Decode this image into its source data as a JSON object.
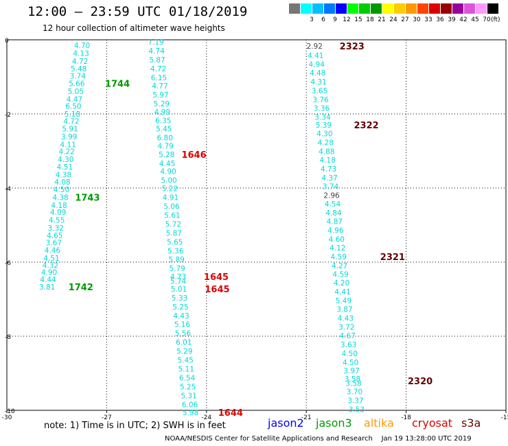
{
  "title": "12:00 – 23:59 UTC 01/18/2019",
  "subtitle": "12 hour collection of altimeter wave heights",
  "color_scale": {
    "unit_label": "(ft)",
    "swatches": [
      {
        "color": "#777777",
        "label": ""
      },
      {
        "color": "#00ffff",
        "label": "3"
      },
      {
        "color": "#00c0ff",
        "label": "6"
      },
      {
        "color": "#0078ff",
        "label": "9"
      },
      {
        "color": "#0000ff",
        "label": "12"
      },
      {
        "color": "#00ff00",
        "label": "15"
      },
      {
        "color": "#00cc00",
        "label": "18"
      },
      {
        "color": "#009900",
        "label": "21"
      },
      {
        "color": "#ffff00",
        "label": "24"
      },
      {
        "color": "#ffcc00",
        "label": "27"
      },
      {
        "color": "#ff9900",
        "label": "30"
      },
      {
        "color": "#ff4400",
        "label": "33"
      },
      {
        "color": "#dd0000",
        "label": "36"
      },
      {
        "color": "#990000",
        "label": "39"
      },
      {
        "color": "#990099",
        "label": "42"
      },
      {
        "color": "#dd55dd",
        "label": "45"
      },
      {
        "color": "#ff99ff",
        "label": "70"
      },
      {
        "color": "#000000",
        "label": ""
      }
    ]
  },
  "note": "note: 1) Time is in UTC; 2) SWH is in feet",
  "legend": [
    {
      "label": "jason2",
      "color": "#0000ff"
    },
    {
      "label": "jason3",
      "color": "#009900"
    },
    {
      "label": "altika",
      "color": "#ff9900"
    },
    {
      "label": "cryosat",
      "color": "#dd0000"
    },
    {
      "label": "s3a",
      "color": "#660000"
    }
  ],
  "footer": "NOAA/NESDIS Center for Satellite Applications and Research    Jan 19 13:28:00 UTC 2019",
  "chart_data": {
    "type": "scatter",
    "xlim": [
      -30,
      -15
    ],
    "ylim": [
      -10,
      0
    ],
    "x_ticks": [
      "-30",
      "-27",
      "-24",
      "-21",
      "-18",
      "-15"
    ],
    "y_ticks": [
      "0",
      "-2",
      "-4",
      "-6",
      "-8",
      "-10"
    ],
    "grid": true,
    "series": [
      {
        "name": "jason3",
        "color": "#009900",
        "points": [
          {
            "x": -27.74,
            "y": -0.15,
            "v": "4.70"
          },
          {
            "x": -27.77,
            "y": -0.36,
            "v": "4.13"
          },
          {
            "x": -27.8,
            "y": -0.57,
            "v": "4.72"
          },
          {
            "x": -27.84,
            "y": -0.78,
            "v": "5.48"
          },
          {
            "x": -27.87,
            "y": -0.97,
            "v": "3.74"
          },
          {
            "x": -27.9,
            "y": -1.18,
            "v": "5.66"
          },
          {
            "x": -27.93,
            "y": -1.39,
            "v": "5.05"
          },
          {
            "x": -27.97,
            "y": -1.6,
            "v": "4.47"
          },
          {
            "x": -28.0,
            "y": -1.79,
            "v": "6.50"
          },
          {
            "x": -28.03,
            "y": -2.0,
            "v": "5.18"
          },
          {
            "x": -28.06,
            "y": -2.19,
            "v": "4.72"
          },
          {
            "x": -28.1,
            "y": -2.4,
            "v": "5.91"
          },
          {
            "x": -28.13,
            "y": -2.61,
            "v": "3.99"
          },
          {
            "x": -28.16,
            "y": -2.82,
            "v": "4.11"
          },
          {
            "x": -28.2,
            "y": -3.01,
            "v": "4.22"
          },
          {
            "x": -28.23,
            "y": -3.22,
            "v": "4.30"
          },
          {
            "x": -28.26,
            "y": -3.43,
            "v": "4.51"
          },
          {
            "x": -28.3,
            "y": -3.64,
            "v": "4.38"
          },
          {
            "x": -28.33,
            "y": -3.83,
            "v": "4.08"
          },
          {
            "x": -28.36,
            "y": -4.04,
            "v": "4.50"
          },
          {
            "x": -28.39,
            "y": -4.25,
            "v": "4.38"
          },
          {
            "x": -28.43,
            "y": -4.46,
            "v": "4.18"
          },
          {
            "x": -28.46,
            "y": -4.65,
            "v": "4.09"
          },
          {
            "x": -28.5,
            "y": -4.86,
            "v": "4.55"
          },
          {
            "x": -28.53,
            "y": -5.07,
            "v": "3.32"
          },
          {
            "x": -28.56,
            "y": -5.28,
            "v": "4.65"
          },
          {
            "x": -28.59,
            "y": -5.47,
            "v": "3.67"
          },
          {
            "x": -28.63,
            "y": -5.68,
            "v": "4.46"
          },
          {
            "x": -28.66,
            "y": -5.89,
            "v": "4.51"
          },
          {
            "x": -28.69,
            "y": -6.08,
            "v": "4.32"
          },
          {
            "x": -28.73,
            "y": -6.27,
            "v": "4.90"
          },
          {
            "x": -28.76,
            "y": -6.46,
            "v": "4.44"
          },
          {
            "x": -28.79,
            "y": -6.67,
            "v": "3.81"
          }
        ],
        "time_labels": [
          {
            "x": -27.05,
            "y": -1.18,
            "text": "1744"
          },
          {
            "x": -27.95,
            "y": -4.25,
            "text": "1743"
          },
          {
            "x": -28.15,
            "y": -6.67,
            "text": "1742"
          }
        ]
      },
      {
        "name": "cryosat",
        "color": "#dd0000",
        "points": [
          {
            "x": -25.52,
            "y": -0.06,
            "v": "7.19"
          },
          {
            "x": -25.5,
            "y": -0.3,
            "v": "4.74"
          },
          {
            "x": -25.48,
            "y": -0.54,
            "v": "5.87"
          },
          {
            "x": -25.45,
            "y": -0.78,
            "v": "4.72"
          },
          {
            "x": -25.43,
            "y": -1.02,
            "v": "6.15"
          },
          {
            "x": -25.4,
            "y": -1.24,
            "v": "4.77"
          },
          {
            "x": -25.38,
            "y": -1.48,
            "v": "5.97"
          },
          {
            "x": -25.35,
            "y": -1.72,
            "v": "5.29"
          },
          {
            "x": -25.33,
            "y": -1.94,
            "v": "4.99"
          },
          {
            "x": -25.3,
            "y": -2.18,
            "v": "6.35"
          },
          {
            "x": -25.28,
            "y": -2.4,
            "v": "5.45"
          },
          {
            "x": -25.25,
            "y": -2.64,
            "v": "6.80"
          },
          {
            "x": -25.23,
            "y": -2.86,
            "v": "4.79"
          },
          {
            "x": -25.2,
            "y": -3.09,
            "v": "5.28"
          },
          {
            "x": -25.18,
            "y": -3.33,
            "v": "4.45"
          },
          {
            "x": -25.15,
            "y": -3.55,
            "v": "4.90"
          },
          {
            "x": -25.13,
            "y": -3.79,
            "v": "5.00"
          },
          {
            "x": -25.1,
            "y": -4.01,
            "v": "5.22"
          },
          {
            "x": -25.08,
            "y": -4.25,
            "v": "4.91"
          },
          {
            "x": -25.05,
            "y": -4.49,
            "v": "5.06"
          },
          {
            "x": -25.03,
            "y": -4.73,
            "v": "5.61"
          },
          {
            "x": -25.0,
            "y": -4.97,
            "v": "5.72"
          },
          {
            "x": -24.98,
            "y": -5.21,
            "v": "5.87"
          },
          {
            "x": -24.95,
            "y": -5.45,
            "v": "5.65"
          },
          {
            "x": -24.93,
            "y": -5.69,
            "v": "5.36"
          },
          {
            "x": -24.9,
            "y": -5.93,
            "v": "5.89"
          },
          {
            "x": -24.88,
            "y": -6.17,
            "v": "5.79"
          },
          {
            "x": -24.85,
            "y": -6.39,
            "v": "4.73"
          },
          {
            "x": -24.85,
            "y": -6.51,
            "v": "5.74"
          },
          {
            "x": -24.83,
            "y": -6.72,
            "v": "5.01"
          },
          {
            "x": -24.81,
            "y": -6.96,
            "v": "5.33"
          },
          {
            "x": -24.78,
            "y": -7.2,
            "v": "5.25"
          },
          {
            "x": -24.76,
            "y": -7.44,
            "v": "4.43"
          },
          {
            "x": -24.73,
            "y": -7.68,
            "v": "5.16"
          },
          {
            "x": -24.71,
            "y": -7.92,
            "v": "5.56"
          },
          {
            "x": -24.68,
            "y": -8.16,
            "v": "6.01"
          },
          {
            "x": -24.66,
            "y": -8.4,
            "v": "5.29"
          },
          {
            "x": -24.63,
            "y": -8.64,
            "v": "5.45"
          },
          {
            "x": -24.61,
            "y": -8.88,
            "v": "5.11"
          },
          {
            "x": -24.58,
            "y": -9.12,
            "v": "6.54"
          },
          {
            "x": -24.56,
            "y": -9.36,
            "v": "5.25"
          },
          {
            "x": -24.53,
            "y": -9.6,
            "v": "5.31"
          },
          {
            "x": -24.5,
            "y": -9.84,
            "v": "6.06"
          },
          {
            "x": -24.48,
            "y": -10.06,
            "v": "5.98"
          }
        ],
        "time_labels": [
          {
            "x": -24.75,
            "y": -3.09,
            "text": "1646"
          },
          {
            "x": -24.08,
            "y": -6.39,
            "text": "1645"
          },
          {
            "x": -24.05,
            "y": -6.72,
            "text": "1645"
          },
          {
            "x": -23.65,
            "y": -10.06,
            "text": "1644"
          }
        ]
      },
      {
        "name": "s3a",
        "color": "#660000",
        "points": [
          {
            "x": -20.75,
            "y": -0.17,
            "v": "2.92",
            "gray": true
          },
          {
            "x": -20.72,
            "y": -0.42,
            "v": "4.41"
          },
          {
            "x": -20.69,
            "y": -0.66,
            "v": "4.94"
          },
          {
            "x": -20.66,
            "y": -0.89,
            "v": "4.48"
          },
          {
            "x": -20.63,
            "y": -1.13,
            "v": "4.31"
          },
          {
            "x": -20.6,
            "y": -1.37,
            "v": "3.65"
          },
          {
            "x": -20.57,
            "y": -1.61,
            "v": "3.76"
          },
          {
            "x": -20.54,
            "y": -1.84,
            "v": "3.36"
          },
          {
            "x": -20.51,
            "y": -2.08,
            "v": "3.34"
          },
          {
            "x": -20.48,
            "y": -2.3,
            "v": "5.39"
          },
          {
            "x": -20.45,
            "y": -2.53,
            "v": "4.30"
          },
          {
            "x": -20.42,
            "y": -2.77,
            "v": "4.28"
          },
          {
            "x": -20.39,
            "y": -3.01,
            "v": "4.88"
          },
          {
            "x": -20.36,
            "y": -3.24,
            "v": "4.18"
          },
          {
            "x": -20.33,
            "y": -3.48,
            "v": "4.73"
          },
          {
            "x": -20.3,
            "y": -3.72,
            "v": "4.37"
          },
          {
            "x": -20.27,
            "y": -3.95,
            "v": "3.74"
          },
          {
            "x": -20.24,
            "y": -4.19,
            "v": "2.96",
            "gray": true
          },
          {
            "x": -20.21,
            "y": -4.43,
            "v": "4.54"
          },
          {
            "x": -20.18,
            "y": -4.67,
            "v": "4.84"
          },
          {
            "x": -20.15,
            "y": -4.9,
            "v": "4.87"
          },
          {
            "x": -20.12,
            "y": -5.14,
            "v": "4.96"
          },
          {
            "x": -20.09,
            "y": -5.38,
            "v": "4.60"
          },
          {
            "x": -20.06,
            "y": -5.61,
            "v": "4.12"
          },
          {
            "x": -20.03,
            "y": -5.85,
            "v": "4.59"
          },
          {
            "x": -20.0,
            "y": -6.09,
            "v": "4.27"
          },
          {
            "x": -19.97,
            "y": -6.32,
            "v": "4.59"
          },
          {
            "x": -19.94,
            "y": -6.56,
            "v": "4.20"
          },
          {
            "x": -19.91,
            "y": -6.8,
            "v": "4.41"
          },
          {
            "x": -19.88,
            "y": -7.04,
            "v": "5.49"
          },
          {
            "x": -19.85,
            "y": -7.27,
            "v": "3.87"
          },
          {
            "x": -19.82,
            "y": -7.51,
            "v": "4.43"
          },
          {
            "x": -19.79,
            "y": -7.75,
            "v": "3.72"
          },
          {
            "x": -19.76,
            "y": -7.98,
            "v": "4.67"
          },
          {
            "x": -19.73,
            "y": -8.22,
            "v": "3.63"
          },
          {
            "x": -19.7,
            "y": -8.46,
            "v": "4.50"
          },
          {
            "x": -19.67,
            "y": -8.7,
            "v": "4.50"
          },
          {
            "x": -19.64,
            "y": -8.93,
            "v": "3.97"
          },
          {
            "x": -19.61,
            "y": -9.15,
            "v": "3.58"
          },
          {
            "x": -19.58,
            "y": -9.27,
            "v": "3.58"
          },
          {
            "x": -19.55,
            "y": -9.49,
            "v": "3.70"
          },
          {
            "x": -19.52,
            "y": -9.73,
            "v": "3.37"
          },
          {
            "x": -19.49,
            "y": -9.97,
            "v": "3.53"
          }
        ],
        "time_labels": [
          {
            "x": -20.0,
            "y": -0.17,
            "text": "2323"
          },
          {
            "x": -19.57,
            "y": -2.3,
            "text": "2322"
          },
          {
            "x": -18.78,
            "y": -5.85,
            "text": "2321"
          },
          {
            "x": -17.95,
            "y": -9.2,
            "text": "2320"
          }
        ]
      }
    ]
  }
}
